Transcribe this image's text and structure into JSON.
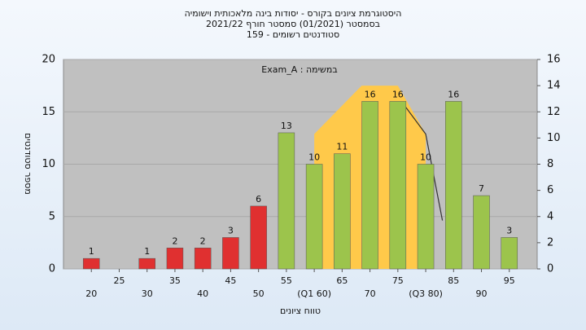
{
  "chart_data": {
    "type": "bar",
    "title": "היסטוגרמת ציונים בקורס - יסודות בינה מלאכותית וישומיה",
    "subtitle": "בסמסטר  (01/2021)  סמסטר חורף  2021/22",
    "subtitle2": "סטודנטים רשומים - 159",
    "annotation": "Exam_A : במשימה",
    "xlabel": "טווח ציונים",
    "ylabel": "מספר סטודנטים",
    "x": [
      20,
      25,
      30,
      35,
      40,
      45,
      50,
      55,
      60,
      65,
      70,
      75,
      80,
      85,
      90,
      95
    ],
    "values": [
      1,
      null,
      1,
      2,
      2,
      3,
      6,
      13,
      10,
      11,
      16,
      16,
      10,
      16,
      7,
      3
    ],
    "colors": [
      "#e03030",
      "#e03030",
      "#e03030",
      "#e03030",
      "#e03030",
      "#e03030",
      "#e03030",
      "#9cc44c",
      "#9cc44c",
      "#9cc44c",
      "#9cc44c",
      "#9cc44c",
      "#9cc44c",
      "#9cc44c",
      "#9cc44c",
      "#9cc44c"
    ],
    "xlim": [
      15,
      100
    ],
    "xticks": [
      20,
      25,
      30,
      35,
      40,
      45,
      50,
      55,
      {
        "value": 60,
        "label": "(Q1 60)"
      },
      65,
      70,
      75,
      {
        "value": 80,
        "label": "(Q3 80)"
      },
      85,
      90,
      95
    ],
    "ylim": [
      0,
      20
    ],
    "yticks": [
      0,
      5,
      10,
      15,
      20
    ],
    "y2lim": [
      0,
      16
    ],
    "y2ticks": [
      0,
      2,
      4,
      6,
      8,
      10,
      12,
      14,
      16
    ],
    "overlays": [
      {
        "type": "area",
        "axis": "y2",
        "color": "#ffc94a",
        "x": [
          60,
          68.5,
          75,
          80
        ],
        "values": [
          10.3,
          14,
          14,
          10.3
        ]
      },
      {
        "type": "line",
        "axis": "y2",
        "color": "#333333",
        "x": [
          76,
          80,
          83
        ],
        "values": [
          12.6,
          10.3,
          3.7
        ]
      }
    ],
    "grid": true
  }
}
